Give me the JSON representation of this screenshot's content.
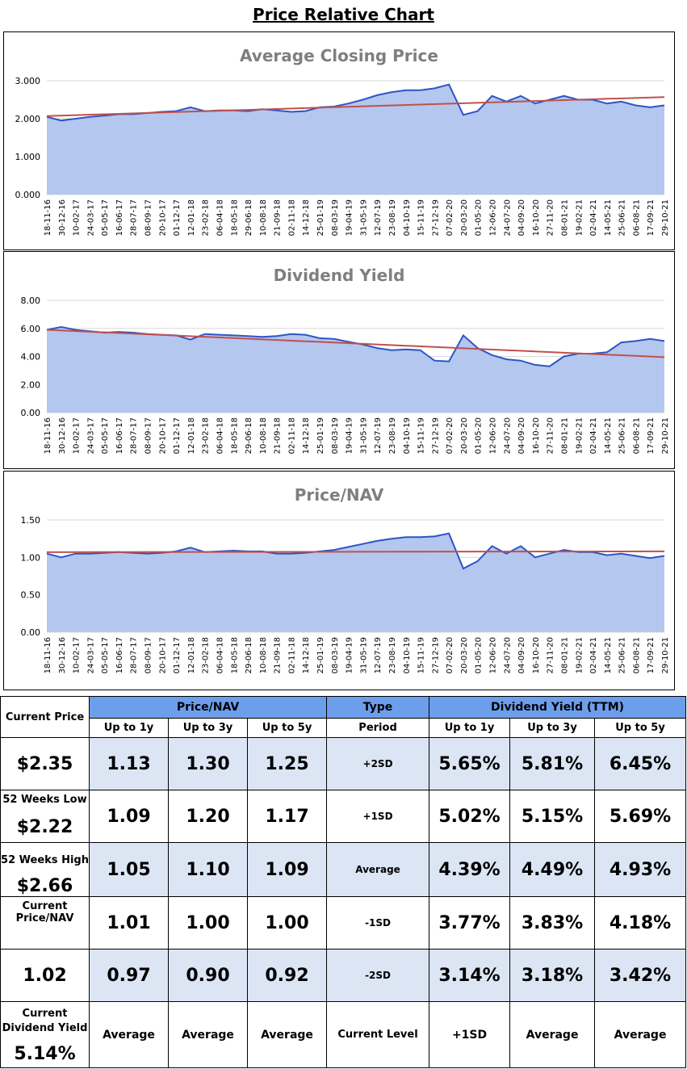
{
  "page_title": "Price Relative Chart",
  "chart_data": [
    {
      "type": "area",
      "title": "Average Closing Price",
      "ylim": [
        0,
        3
      ],
      "y_ticks": [
        "0.000",
        "1.000",
        "2.000",
        "3.000"
      ],
      "y_tick_values": [
        0,
        1,
        2,
        3
      ],
      "x_labels": [
        "18-11-16",
        "30-12-16",
        "10-02-17",
        "24-03-17",
        "05-05-17",
        "16-06-17",
        "28-07-17",
        "08-09-17",
        "20-10-17",
        "01-12-17",
        "12-01-18",
        "23-02-18",
        "06-04-18",
        "18-05-18",
        "29-06-18",
        "10-08-18",
        "21-09-18",
        "02-11-18",
        "14-12-18",
        "25-01-19",
        "08-03-19",
        "19-04-19",
        "31-05-19",
        "12-07-19",
        "23-08-19",
        "04-10-19",
        "15-11-19",
        "27-12-19",
        "07-02-20",
        "20-03-20",
        "01-05-20",
        "12-06-20",
        "24-07-20",
        "04-09-20",
        "16-10-20",
        "27-11-20",
        "08-01-21",
        "19-02-21",
        "02-04-21",
        "14-05-21",
        "25-06-21",
        "06-08-21",
        "17-09-21",
        "29-10-21"
      ],
      "values": [
        2.05,
        1.95,
        2.0,
        2.05,
        2.08,
        2.12,
        2.12,
        2.15,
        2.18,
        2.2,
        2.3,
        2.2,
        2.22,
        2.22,
        2.2,
        2.25,
        2.22,
        2.18,
        2.2,
        2.3,
        2.32,
        2.4,
        2.5,
        2.62,
        2.7,
        2.75,
        2.75,
        2.8,
        2.9,
        2.1,
        2.2,
        2.6,
        2.45,
        2.6,
        2.4,
        2.5,
        2.6,
        2.5,
        2.5,
        2.4,
        2.45,
        2.35,
        2.3,
        2.35
      ],
      "trend": [
        2.07,
        2.57
      ],
      "grid": true
    },
    {
      "type": "area",
      "title": "Dividend Yield",
      "ylim": [
        0,
        8
      ],
      "y_ticks": [
        "0.00",
        "2.00",
        "4.00",
        "6.00",
        "8.00"
      ],
      "y_tick_values": [
        0,
        2,
        4,
        6,
        8
      ],
      "x_labels": [
        "18-11-16",
        "30-12-16",
        "10-02-17",
        "24-03-17",
        "05-05-17",
        "16-06-17",
        "28-07-17",
        "08-09-17",
        "20-10-17",
        "01-12-17",
        "12-01-18",
        "23-02-18",
        "06-04-18",
        "18-05-18",
        "29-06-18",
        "10-08-18",
        "21-09-18",
        "02-11-18",
        "14-12-18",
        "25-01-19",
        "08-03-19",
        "19-04-19",
        "31-05-19",
        "12-07-19",
        "23-08-19",
        "04-10-19",
        "15-11-19",
        "27-12-19",
        "07-02-20",
        "20-03-20",
        "01-05-20",
        "12-06-20",
        "24-07-20",
        "04-09-20",
        "16-10-20",
        "27-11-20",
        "08-01-21",
        "19-02-21",
        "02-04-21",
        "14-05-21",
        "25-06-21",
        "06-08-21",
        "17-09-21",
        "29-10-21"
      ],
      "values": [
        5.9,
        6.1,
        5.9,
        5.8,
        5.7,
        5.75,
        5.7,
        5.6,
        5.55,
        5.5,
        5.2,
        5.6,
        5.55,
        5.5,
        5.45,
        5.4,
        5.45,
        5.6,
        5.55,
        5.3,
        5.25,
        5.05,
        4.85,
        4.6,
        4.45,
        4.5,
        4.45,
        3.7,
        3.65,
        5.5,
        4.6,
        4.1,
        3.8,
        3.7,
        3.4,
        3.3,
        4.0,
        4.2,
        4.2,
        4.3,
        5.0,
        5.1,
        5.25,
        5.1
      ],
      "trend": [
        5.9,
        3.95
      ],
      "grid": true
    },
    {
      "type": "area",
      "title": "Price/NAV",
      "ylim": [
        0,
        1.5
      ],
      "y_ticks": [
        "0.00",
        "0.50",
        "1.00",
        "1.50"
      ],
      "y_tick_values": [
        0,
        0.5,
        1.0,
        1.5
      ],
      "x_labels": [
        "18-11-16",
        "30-12-16",
        "10-02-17",
        "24-03-17",
        "05-05-17",
        "16-06-17",
        "28-07-17",
        "08-09-17",
        "20-10-17",
        "01-12-17",
        "12-01-18",
        "23-02-18",
        "06-04-18",
        "18-05-18",
        "29-06-18",
        "10-08-18",
        "21-09-18",
        "02-11-18",
        "14-12-18",
        "25-01-19",
        "08-03-19",
        "19-04-19",
        "31-05-19",
        "12-07-19",
        "23-08-19",
        "04-10-19",
        "15-11-19",
        "27-12-19",
        "07-02-20",
        "20-03-20",
        "01-05-20",
        "12-06-20",
        "24-07-20",
        "04-09-20",
        "16-10-20",
        "27-11-20",
        "08-01-21",
        "19-02-21",
        "02-04-21",
        "14-05-21",
        "25-06-21",
        "06-08-21",
        "17-09-21",
        "29-10-21"
      ],
      "values": [
        1.05,
        1.0,
        1.05,
        1.05,
        1.06,
        1.07,
        1.06,
        1.05,
        1.06,
        1.08,
        1.13,
        1.07,
        1.08,
        1.09,
        1.08,
        1.08,
        1.05,
        1.05,
        1.06,
        1.08,
        1.1,
        1.14,
        1.18,
        1.22,
        1.25,
        1.27,
        1.27,
        1.28,
        1.32,
        0.85,
        0.95,
        1.15,
        1.05,
        1.15,
        1.0,
        1.05,
        1.1,
        1.07,
        1.07,
        1.03,
        1.05,
        1.02,
        0.99,
        1.02
      ],
      "trend": [
        1.07,
        1.08
      ],
      "grid": true
    }
  ],
  "stats": {
    "left": [
      {
        "label": "Current Price",
        "value": "$2.35"
      },
      {
        "label": "52 Weeks Low",
        "value": "$2.22"
      },
      {
        "label": "52 Weeks High",
        "value": "$2.66"
      },
      {
        "label": "Current Price/NAV",
        "value": "1.02"
      },
      {
        "label": "Current Dividend Yield",
        "value": "5.14%"
      }
    ],
    "pnav_header": "Price/NAV",
    "type_header": "Type",
    "dy_header": "Dividend Yield (TTM)",
    "sub_cols": [
      "Up to 1y",
      "Up to 3y",
      "Up to 5y"
    ],
    "period_label": "Period",
    "rows": [
      {
        "type": "+2SD",
        "pnav": [
          "1.13",
          "1.30",
          "1.25"
        ],
        "dy": [
          "5.65%",
          "5.81%",
          "6.45%"
        ]
      },
      {
        "type": "+1SD",
        "pnav": [
          "1.09",
          "1.20",
          "1.17"
        ],
        "dy": [
          "5.02%",
          "5.15%",
          "5.69%"
        ]
      },
      {
        "type": "Average",
        "pnav": [
          "1.05",
          "1.10",
          "1.09"
        ],
        "dy": [
          "4.39%",
          "4.49%",
          "4.93%"
        ]
      },
      {
        "type": "-1SD",
        "pnav": [
          "1.01",
          "1.00",
          "1.00"
        ],
        "dy": [
          "3.77%",
          "3.83%",
          "4.18%"
        ]
      },
      {
        "type": "-2SD",
        "pnav": [
          "0.97",
          "0.90",
          "0.92"
        ],
        "dy": [
          "3.14%",
          "3.18%",
          "3.42%"
        ]
      }
    ],
    "current_level_label": "Current Level",
    "current_level": {
      "pnav": [
        "Average",
        "Average",
        "Average"
      ],
      "dy": [
        "+1SD",
        "Average",
        "Average"
      ]
    }
  }
}
